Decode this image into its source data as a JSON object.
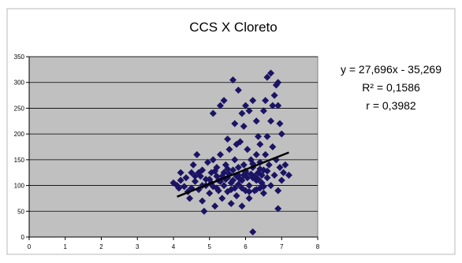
{
  "chart_data": {
    "type": "scatter",
    "title": "CCS X Cloreto",
    "xlabel": "",
    "ylabel": "",
    "xlim": [
      0,
      8
    ],
    "ylim": [
      0,
      350
    ],
    "x_ticks": [
      "0",
      "1",
      "2",
      "3",
      "4",
      "5",
      "6",
      "7",
      "8"
    ],
    "y_ticks": [
      "0",
      "50",
      "100",
      "150",
      "200",
      "250",
      "300",
      "350"
    ],
    "grid": true,
    "legend": "none",
    "colors": {
      "plot_background": "#c0c0c0",
      "marker": "#1b1464",
      "trendline": "#000000",
      "gridline": "#000000"
    },
    "marker_shape": "diamond",
    "annotations": {
      "equation": "y = 27,696x - 35,269",
      "r_squared": "R² = 0,1586",
      "r": "r = 0,3982"
    },
    "trendline": {
      "slope": 27.696,
      "intercept": -35.269,
      "x_range": [
        4.1,
        7.2
      ]
    },
    "series": [
      {
        "points": [
          [
            4.0,
            105
          ],
          [
            4.1,
            100
          ],
          [
            4.15,
            95
          ],
          [
            4.2,
            110
          ],
          [
            4.3,
            98
          ],
          [
            4.35,
            115
          ],
          [
            4.4,
            88
          ],
          [
            4.45,
            75
          ],
          [
            4.5,
            125
          ],
          [
            4.5,
            95
          ],
          [
            4.55,
            140
          ],
          [
            4.6,
            108
          ],
          [
            4.65,
            160
          ],
          [
            4.7,
            92
          ],
          [
            4.75,
            118
          ],
          [
            4.8,
            70
          ],
          [
            4.8,
            130
          ],
          [
            4.85,
            50
          ],
          [
            4.9,
            100
          ],
          [
            4.95,
            145
          ],
          [
            5.0,
            112
          ],
          [
            5.0,
            85
          ],
          [
            5.05,
            125
          ],
          [
            5.1,
            98
          ],
          [
            5.1,
            150
          ],
          [
            5.15,
            60
          ],
          [
            5.2,
            118
          ],
          [
            5.2,
            135
          ],
          [
            5.25,
            90
          ],
          [
            5.3,
            108
          ],
          [
            5.3,
            160
          ],
          [
            5.35,
            75
          ],
          [
            5.4,
            125
          ],
          [
            5.4,
            100
          ],
          [
            5.45,
            140
          ],
          [
            5.5,
            88
          ],
          [
            5.5,
            115
          ],
          [
            5.55,
            170
          ],
          [
            5.6,
            65
          ],
          [
            5.6,
            105
          ],
          [
            5.65,
            130
          ],
          [
            5.7,
            95
          ],
          [
            5.7,
            150
          ],
          [
            5.75,
            80
          ],
          [
            5.8,
            120
          ],
          [
            5.8,
            102
          ],
          [
            5.85,
            185
          ],
          [
            5.9,
            60
          ],
          [
            5.9,
            110
          ],
          [
            5.95,
            140
          ],
          [
            6.0,
            90
          ],
          [
            6.0,
            125
          ],
          [
            6.05,
            170
          ],
          [
            6.1,
            100
          ],
          [
            6.1,
            75
          ],
          [
            6.15,
            150
          ],
          [
            6.2,
            115
          ],
          [
            6.2,
            135
          ],
          [
            6.25,
            90
          ],
          [
            6.3,
            160
          ],
          [
            6.3,
            110
          ],
          [
            6.35,
            125
          ],
          [
            6.4,
            95
          ],
          [
            6.4,
            145
          ],
          [
            6.45,
            105
          ],
          [
            6.5,
            130
          ],
          [
            6.5,
            85
          ],
          [
            6.55,
            160
          ],
          [
            6.6,
            115
          ],
          [
            6.65,
            140
          ],
          [
            6.7,
            100
          ],
          [
            6.75,
            175
          ],
          [
            6.8,
            120
          ],
          [
            6.85,
            150
          ],
          [
            6.9,
            90
          ],
          [
            6.95,
            135
          ],
          [
            7.0,
            110
          ],
          [
            7.05,
            125
          ],
          [
            4.6,
            118
          ],
          [
            4.9,
            112
          ],
          [
            5.05,
            105
          ],
          [
            5.25,
            110
          ],
          [
            5.35,
            118
          ],
          [
            5.45,
            112
          ],
          [
            5.55,
            122
          ],
          [
            5.65,
            110
          ],
          [
            5.75,
            118
          ],
          [
            5.85,
            112
          ],
          [
            5.95,
            120
          ],
          [
            6.05,
            115
          ],
          [
            6.15,
            122
          ],
          [
            6.25,
            118
          ],
          [
            6.35,
            112
          ],
          [
            6.45,
            120
          ],
          [
            5.15,
            128
          ],
          [
            5.5,
            132
          ],
          [
            5.8,
            135
          ],
          [
            6.0,
            128
          ],
          [
            6.2,
            142
          ],
          [
            6.4,
            132
          ],
          [
            6.6,
            128
          ],
          [
            4.7,
            125
          ],
          [
            5.2,
            95
          ],
          [
            5.6,
            92
          ],
          [
            5.9,
            95
          ],
          [
            6.1,
            88
          ],
          [
            6.3,
            92
          ],
          [
            6.5,
            98
          ],
          [
            4.2,
            125
          ],
          [
            5.3,
            255
          ],
          [
            5.4,
            265
          ],
          [
            5.1,
            240
          ],
          [
            5.7,
            220
          ],
          [
            5.9,
            240
          ],
          [
            6.0,
            255
          ],
          [
            6.2,
            265
          ],
          [
            5.8,
            285
          ],
          [
            5.65,
            305
          ],
          [
            5.75,
            180
          ],
          [
            6.1,
            245
          ],
          [
            6.35,
            195
          ],
          [
            6.5,
            245
          ],
          [
            6.55,
            265
          ],
          [
            6.6,
            310
          ],
          [
            6.7,
            318
          ],
          [
            6.85,
            295
          ],
          [
            6.9,
            300
          ],
          [
            6.75,
            255
          ],
          [
            6.8,
            275
          ],
          [
            6.95,
            220
          ],
          [
            7.0,
            200
          ],
          [
            6.4,
            180
          ],
          [
            6.3,
            225
          ],
          [
            6.6,
            195
          ],
          [
            6.9,
            255
          ],
          [
            6.7,
            225
          ],
          [
            5.95,
            215
          ],
          [
            5.5,
            190
          ],
          [
            4.8,
            100
          ],
          [
            6.2,
            10
          ],
          [
            6.9,
            55
          ],
          [
            7.2,
            120
          ],
          [
            7.1,
            140
          ]
        ]
      }
    ]
  }
}
